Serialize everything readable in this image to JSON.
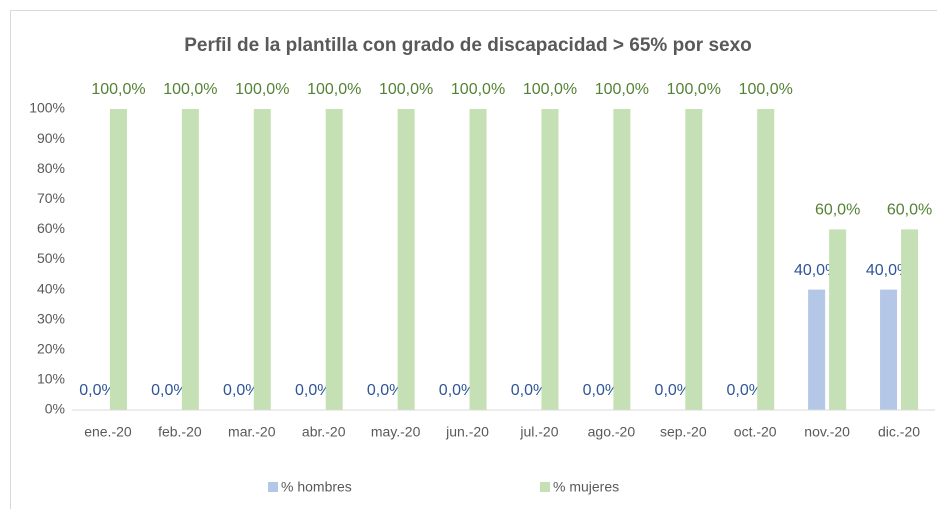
{
  "chart_data": {
    "type": "bar",
    "title": "Perfil de la plantilla con grado de discapacidad  > 65% por sexo",
    "categories": [
      "ene.-20",
      "feb.-20",
      "mar.-20",
      "abr.-20",
      "may.-20",
      "jun.-20",
      "jul.-20",
      "ago.-20",
      "sep.-20",
      "oct.-20",
      "nov.-20",
      "dic.-20"
    ],
    "series": [
      {
        "name": "% hombres",
        "color": "#b4c7e7",
        "label_color": "#2f5597",
        "values": [
          0,
          0,
          0,
          0,
          0,
          0,
          0,
          0,
          0,
          0,
          40,
          40
        ],
        "value_labels": [
          "0,0%",
          "0,0%",
          "0,0%",
          "0,0%",
          "0,0%",
          "0,0%",
          "0,0%",
          "0,0%",
          "0,0%",
          "0,0%",
          "40,0%",
          "40,0%"
        ]
      },
      {
        "name": "% mujeres",
        "color": "#c5e0b4",
        "label_color": "#548235",
        "values": [
          100,
          100,
          100,
          100,
          100,
          100,
          100,
          100,
          100,
          100,
          60,
          60
        ],
        "value_labels": [
          "100,0%",
          "100,0%",
          "100,0%",
          "100,0%",
          "100,0%",
          "100,0%",
          "100,0%",
          "100,0%",
          "100,0%",
          "100,0%",
          "60,0%",
          "60,0%"
        ]
      }
    ],
    "ylim": [
      0,
      100
    ],
    "yticks": [
      {
        "value": 0,
        "label": "0%"
      },
      {
        "value": 10,
        "label": "10%"
      },
      {
        "value": 20,
        "label": "20%"
      },
      {
        "value": 30,
        "label": "30%"
      },
      {
        "value": 40,
        "label": "40%"
      },
      {
        "value": 50,
        "label": "50%"
      },
      {
        "value": 60,
        "label": "60%"
      },
      {
        "value": 70,
        "label": "70%"
      },
      {
        "value": 80,
        "label": "80%"
      },
      {
        "value": 90,
        "label": "90%"
      },
      {
        "value": 100,
        "label": "100%"
      }
    ],
    "grid": false,
    "legend": "bottom"
  }
}
